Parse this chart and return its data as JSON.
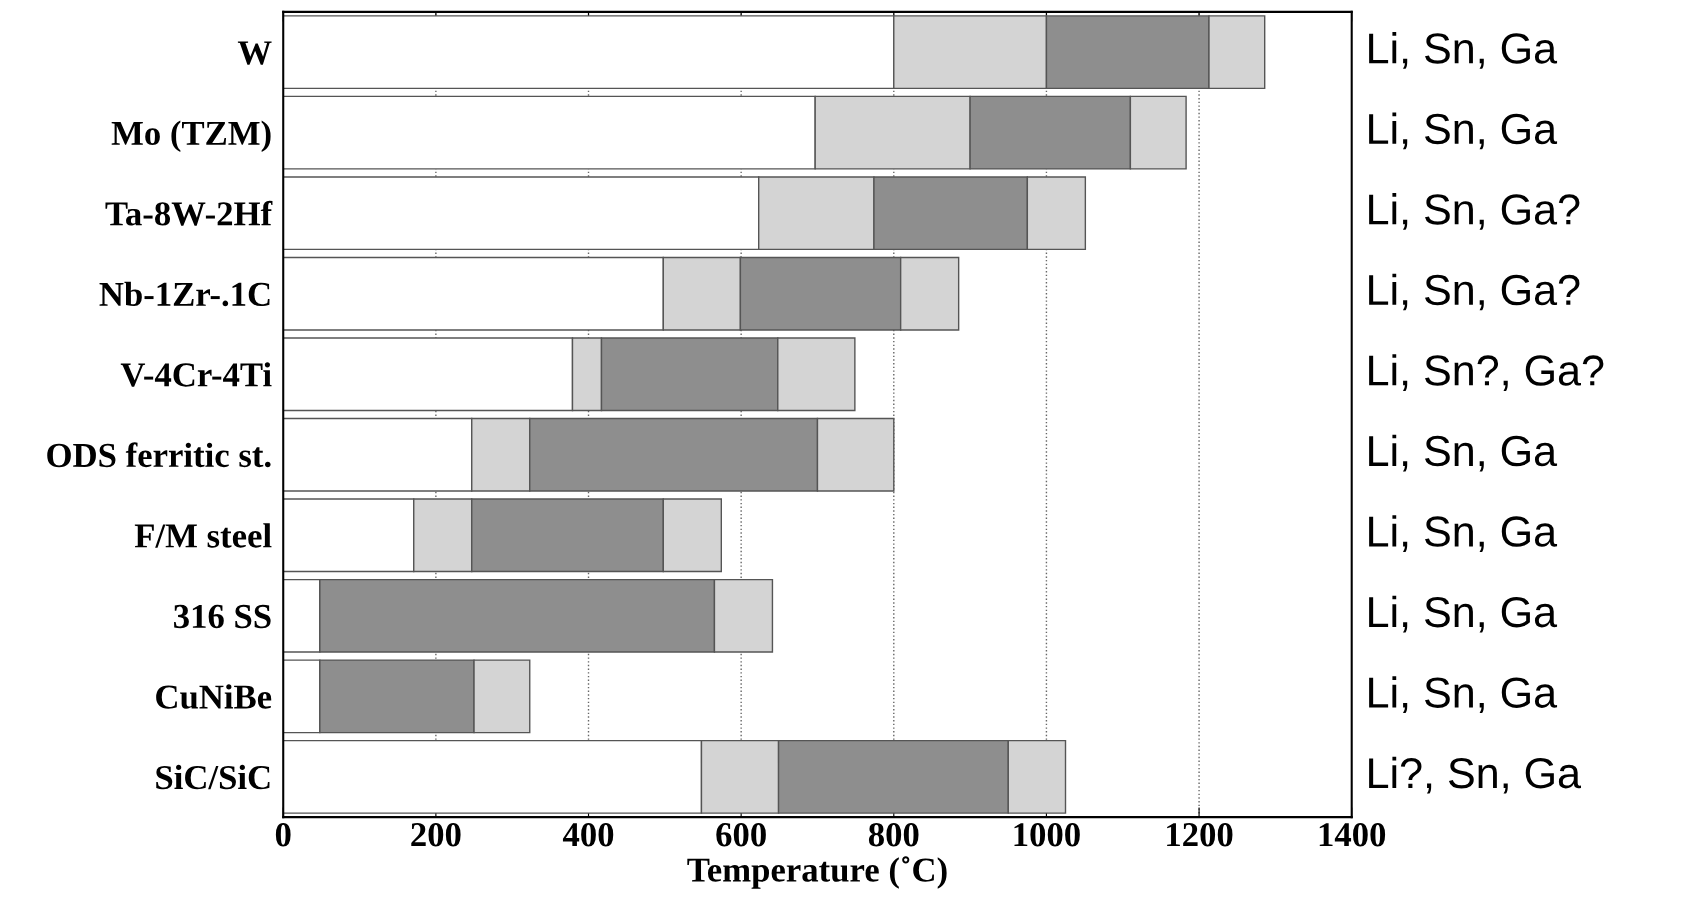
{
  "chart_data": {
    "type": "bar",
    "orientation": "horizontal",
    "stacked": true,
    "categories": [
      "W",
      "Mo (TZM)",
      "Ta-8W-2Hf",
      "Nb-1Zr-.1C",
      "V-4Cr-4Ti",
      "ODS ferritic st.",
      "F/M steel",
      "316 SS",
      "CuNiBe",
      "SiC/SiC"
    ],
    "series": [
      {
        "color": "#ffffff",
        "values": [
          800,
          697,
          623,
          498,
          379,
          247,
          171,
          48,
          48,
          548
        ]
      },
      {
        "color": "#d4d4d4",
        "values": [
          200,
          203,
          151,
          101,
          38,
          76,
          76,
          null,
          null,
          101
        ]
      },
      {
        "color": "#8e8e8e",
        "values": [
          213,
          210,
          201,
          210,
          231,
          377,
          251,
          517,
          202,
          301
        ]
      },
      {
        "color": "#d4d4d4",
        "values": [
          73,
          73,
          76,
          76,
          101,
          100,
          76,
          76,
          73,
          75
        ]
      }
    ],
    "xlabel": "Temperature (˚C)",
    "xlim": [
      0,
      1400
    ],
    "xticks": [
      0,
      200,
      400,
      600,
      800,
      1000,
      1200,
      1400
    ],
    "grid": "x",
    "legend": false,
    "annotations": [
      "Li, Sn, Ga",
      "Li, Sn, Ga",
      "Li, Sn, Ga?",
      "Li, Sn, Ga?",
      "Li, Sn?, Ga?",
      "Li, Sn, Ga",
      "Li, Sn, Ga",
      "Li, Sn, Ga",
      "Li, Sn, Ga",
      "Li?, Sn, Ga"
    ]
  }
}
